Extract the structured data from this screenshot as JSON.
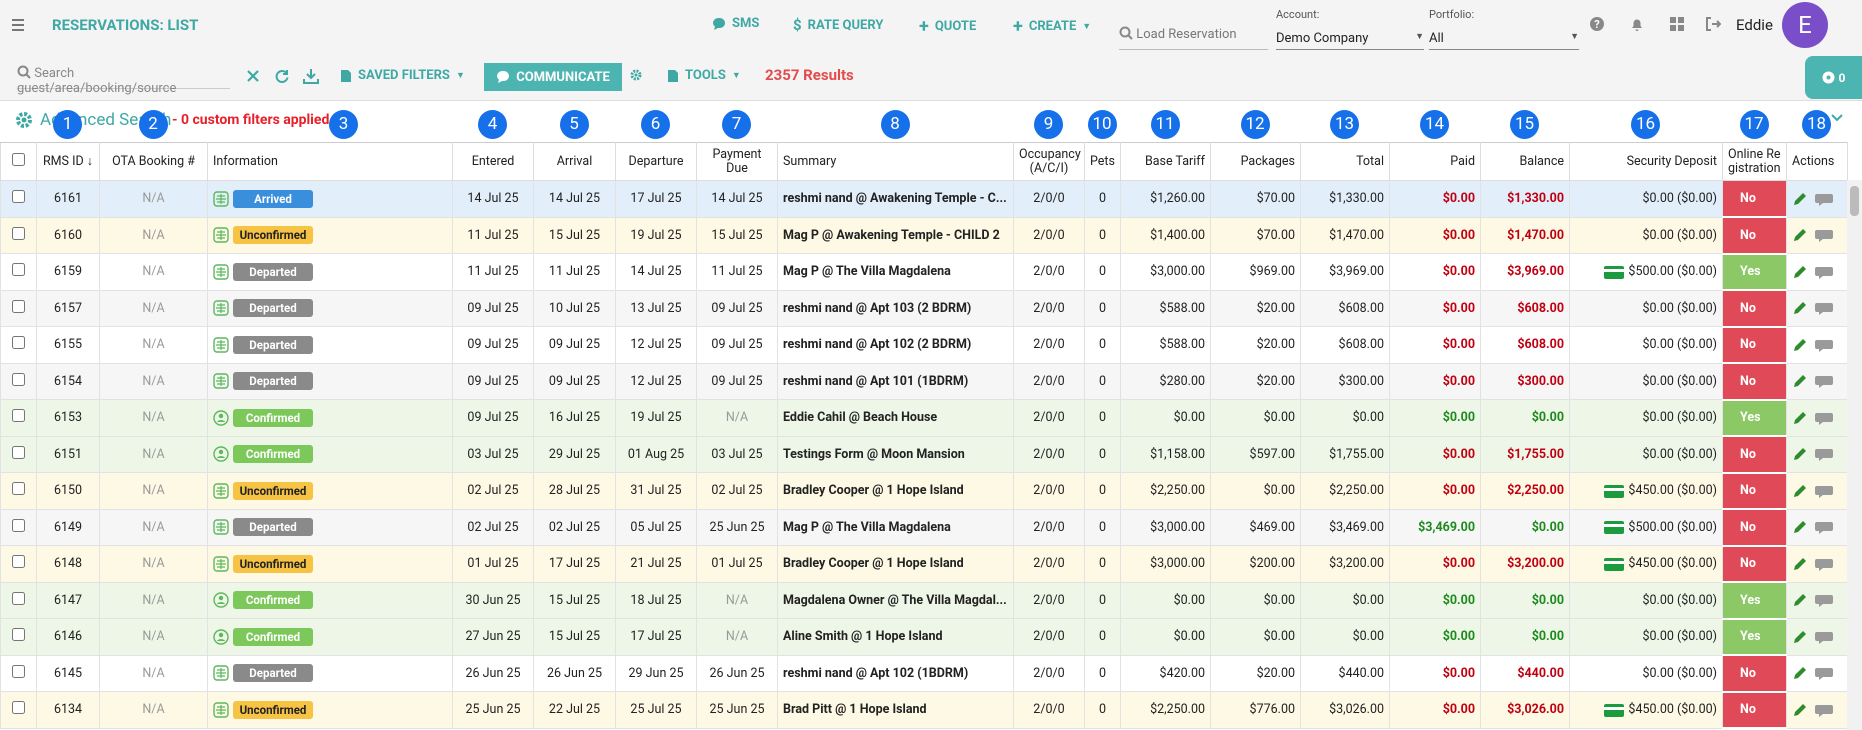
{
  "header": {
    "title": "RESERVATIONS: LIST",
    "nav": [
      "SMS",
      "RATE QUERY",
      "QUOTE",
      "CREATE"
    ],
    "load_placeholder": "Load Reservation",
    "account_label": "Account:",
    "account_value": "Demo Company",
    "portfolio_label": "Portfolio:",
    "portfolio_value": "All",
    "user": "Eddie",
    "avatar": "E"
  },
  "toolbar": {
    "search_placeholder": "Search guest/area/booking/source",
    "saved_filters": "SAVED FILTERS",
    "communicate": "COMMUNICATE",
    "tools": "TOOLS",
    "results": "2357 Results",
    "badge": 0
  },
  "filters": {
    "title": "Advanced Search",
    "status": "- 0 custom filters applied"
  },
  "annotations": [
    1,
    2,
    3,
    4,
    5,
    6,
    7,
    8,
    9,
    10,
    11,
    12,
    13,
    14,
    15,
    16,
    17,
    18
  ],
  "table": {
    "headers": [
      "RMS ID",
      "OTA Booking #",
      "Information",
      "Entered",
      "Arrival",
      "Departure",
      "Payment Due",
      "Summary",
      "Occupancy (A/C/I)",
      "Pets",
      "Base Tariff",
      "Packages",
      "Total",
      "Paid",
      "Balance",
      "Security Deposit",
      "Online Registration",
      "Actions"
    ],
    "rows": [
      {
        "id": 6161,
        "ota": "N/A",
        "icon": "globe",
        "status": "Arrived",
        "entered": "14 Jul 25",
        "arrival": "14 Jul 25",
        "departure": "17 Jul 25",
        "due": "14 Jul 25",
        "summary": "reshmi nand @ Awakening Temple - C...",
        "occupancy": "2/0/0",
        "pets": 0,
        "base": "$1,260.00",
        "packages": "$70.00",
        "total": "$1,330.00",
        "paid": "$0.00",
        "balance": "$1,330.00",
        "card": false,
        "deposit": "$0.00 ($0.00)",
        "online": "No",
        "bg": "#e2effa",
        "badge": "#3a8fdc",
        "ink": "#ffffff",
        "paid_color": "#c00010",
        "balance_color": "#c00010",
        "online_color": "#e04a58"
      },
      {
        "id": 6160,
        "ota": "N/A",
        "icon": "globe",
        "status": "Unconfirmed",
        "entered": "11 Jul 25",
        "arrival": "15 Jul 25",
        "departure": "19 Jul 25",
        "due": "15 Jul 25",
        "summary": "Mag P @ Awakening Temple - CHILD 2",
        "occupancy": "2/0/0",
        "pets": 0,
        "base": "$1,400.00",
        "packages": "$70.00",
        "total": "$1,470.00",
        "paid": "$0.00",
        "balance": "$1,470.00",
        "card": false,
        "deposit": "$0.00 ($0.00)",
        "online": "No",
        "bg": "#fdf9e4",
        "badge": "#f6c344",
        "ink": "#222222",
        "paid_color": "#c00010",
        "balance_color": "#c00010",
        "online_color": "#e04a58"
      },
      {
        "id": 6159,
        "ota": "N/A",
        "icon": "globe",
        "status": "Departed",
        "entered": "11 Jul 25",
        "arrival": "11 Jul 25",
        "departure": "14 Jul 25",
        "due": "11 Jul 25",
        "summary": "Mag P @ The Villa Magdalena",
        "occupancy": "2/0/0",
        "pets": 0,
        "base": "$3,000.00",
        "packages": "$969.00",
        "total": "$3,969.00",
        "paid": "$0.00",
        "balance": "$3,969.00",
        "card": true,
        "deposit": "$500.00 ($0.00)",
        "online": "Yes",
        "bg": "#ffffff",
        "badge": "#8a8a8a",
        "ink": "#ffffff",
        "paid_color": "#c00010",
        "balance_color": "#c00010",
        "online_color": "#8cc866"
      },
      {
        "id": 6157,
        "ota": "N/A",
        "icon": "globe",
        "status": "Departed",
        "entered": "09 Jul 25",
        "arrival": "10 Jul 25",
        "departure": "13 Jul 25",
        "due": "09 Jul 25",
        "summary": "reshmi nand @ Apt 103 (2 BDRM)",
        "occupancy": "2/0/0",
        "pets": 0,
        "base": "$588.00",
        "packages": "$20.00",
        "total": "$608.00",
        "paid": "$0.00",
        "balance": "$608.00",
        "card": false,
        "deposit": "$0.00 ($0.00)",
        "online": "No",
        "bg": "#f6f6f6",
        "badge": "#8a8a8a",
        "ink": "#ffffff",
        "paid_color": "#c00010",
        "balance_color": "#c00010",
        "online_color": "#e04a58"
      },
      {
        "id": 6155,
        "ota": "N/A",
        "icon": "globe",
        "status": "Departed",
        "entered": "09 Jul 25",
        "arrival": "09 Jul 25",
        "departure": "12 Jul 25",
        "due": "09 Jul 25",
        "summary": "reshmi nand @ Apt 102 (2 BDRM)",
        "occupancy": "2/0/0",
        "pets": 0,
        "base": "$588.00",
        "packages": "$20.00",
        "total": "$608.00",
        "paid": "$0.00",
        "balance": "$608.00",
        "card": false,
        "deposit": "$0.00 ($0.00)",
        "online": "No",
        "bg": "#ffffff",
        "badge": "#8a8a8a",
        "ink": "#ffffff",
        "paid_color": "#c00010",
        "balance_color": "#c00010",
        "online_color": "#e04a58"
      },
      {
        "id": 6154,
        "ota": "N/A",
        "icon": "globe",
        "status": "Departed",
        "entered": "09 Jul 25",
        "arrival": "09 Jul 25",
        "departure": "12 Jul 25",
        "due": "09 Jul 25",
        "summary": "reshmi nand @ Apt 101 (1BDRM)",
        "occupancy": "2/0/0",
        "pets": 0,
        "base": "$280.00",
        "packages": "$20.00",
        "total": "$300.00",
        "paid": "$0.00",
        "balance": "$300.00",
        "card": false,
        "deposit": "$0.00 ($0.00)",
        "online": "No",
        "bg": "#f6f6f6",
        "badge": "#8a8a8a",
        "ink": "#ffffff",
        "paid_color": "#c00010",
        "balance_color": "#c00010",
        "online_color": "#e04a58"
      },
      {
        "id": 6153,
        "ota": "N/A",
        "icon": "person",
        "status": "Confirmed",
        "entered": "09 Jul 25",
        "arrival": "16 Jul 25",
        "departure": "19 Jul 25",
        "due": "N/A",
        "summary": "Eddie Cahil @ Beach House",
        "occupancy": "2/0/0",
        "pets": 0,
        "base": "$0.00",
        "packages": "$0.00",
        "total": "$0.00",
        "paid": "$0.00",
        "balance": "$0.00",
        "card": false,
        "deposit": "$0.00 ($0.00)",
        "online": "Yes",
        "bg": "#eef6e8",
        "badge": "#7cc85a",
        "ink": "#ffffff",
        "paid_color": "#1c8a1c",
        "balance_color": "#1c8a1c",
        "online_color": "#8cc866"
      },
      {
        "id": 6151,
        "ota": "N/A",
        "icon": "person",
        "status": "Confirmed",
        "entered": "03 Jul 25",
        "arrival": "29 Jul 25",
        "departure": "01 Aug 25",
        "due": "03 Jul 25",
        "summary": "Testings Form @ Moon Mansion",
        "occupancy": "2/0/0",
        "pets": 0,
        "base": "$1,158.00",
        "packages": "$597.00",
        "total": "$1,755.00",
        "paid": "$0.00",
        "balance": "$1,755.00",
        "card": false,
        "deposit": "$0.00 ($0.00)",
        "online": "No",
        "bg": "#eef6e8",
        "badge": "#7cc85a",
        "ink": "#ffffff",
        "paid_color": "#c00010",
        "balance_color": "#c00010",
        "online_color": "#e04a58"
      },
      {
        "id": 6150,
        "ota": "N/A",
        "icon": "globe",
        "status": "Unconfirmed",
        "entered": "02 Jul 25",
        "arrival": "28 Jul 25",
        "departure": "31 Jul 25",
        "due": "02 Jul 25",
        "summary": "Bradley Cooper @ 1 Hope Island",
        "occupancy": "2/0/0",
        "pets": 0,
        "base": "$2,250.00",
        "packages": "$0.00",
        "total": "$2,250.00",
        "paid": "$0.00",
        "balance": "$2,250.00",
        "card": true,
        "deposit": "$450.00 ($0.00)",
        "online": "No",
        "bg": "#fdf9e4",
        "badge": "#f6c344",
        "ink": "#222222",
        "paid_color": "#c00010",
        "balance_color": "#c00010",
        "online_color": "#e04a58"
      },
      {
        "id": 6149,
        "ota": "N/A",
        "icon": "globe",
        "status": "Departed",
        "entered": "02 Jul 25",
        "arrival": "02 Jul 25",
        "departure": "05 Jul 25",
        "due": "25 Jun 25",
        "summary": "Mag P @ The Villa Magdalena",
        "occupancy": "2/0/0",
        "pets": 0,
        "base": "$3,000.00",
        "packages": "$469.00",
        "total": "$3,469.00",
        "paid": "$3,469.00",
        "balance": "$0.00",
        "card": true,
        "deposit": "$500.00 ($0.00)",
        "online": "No",
        "bg": "#f6f6f6",
        "badge": "#8a8a8a",
        "ink": "#ffffff",
        "paid_color": "#1c8a1c",
        "balance_color": "#1c8a1c",
        "online_color": "#e04a58"
      },
      {
        "id": 6148,
        "ota": "N/A",
        "icon": "globe",
        "status": "Unconfirmed",
        "entered": "01 Jul 25",
        "arrival": "17 Jul 25",
        "departure": "21 Jul 25",
        "due": "01 Jul 25",
        "summary": "Bradley Cooper @ 1 Hope Island",
        "occupancy": "2/0/0",
        "pets": 0,
        "base": "$3,000.00",
        "packages": "$200.00",
        "total": "$3,200.00",
        "paid": "$0.00",
        "balance": "$3,200.00",
        "card": true,
        "deposit": "$450.00 ($0.00)",
        "online": "No",
        "bg": "#fdf9e4",
        "badge": "#f6c344",
        "ink": "#222222",
        "paid_color": "#c00010",
        "balance_color": "#c00010",
        "online_color": "#e04a58"
      },
      {
        "id": 6147,
        "ota": "N/A",
        "icon": "person",
        "status": "Confirmed",
        "entered": "30 Jun 25",
        "arrival": "15 Jul 25",
        "departure": "18 Jul 25",
        "due": "N/A",
        "summary": "Magdalena Owner @ The Villa Magdal...",
        "occupancy": "2/0/0",
        "pets": 0,
        "base": "$0.00",
        "packages": "$0.00",
        "total": "$0.00",
        "paid": "$0.00",
        "balance": "$0.00",
        "card": false,
        "deposit": "$0.00 ($0.00)",
        "online": "Yes",
        "bg": "#eef6e8",
        "badge": "#7cc85a",
        "ink": "#ffffff",
        "paid_color": "#1c8a1c",
        "balance_color": "#1c8a1c",
        "online_color": "#8cc866"
      },
      {
        "id": 6146,
        "ota": "N/A",
        "icon": "person",
        "status": "Confirmed",
        "entered": "27 Jun 25",
        "arrival": "15 Jul 25",
        "departure": "17 Jul 25",
        "due": "N/A",
        "summary": "Aline Smith @ 1 Hope Island",
        "occupancy": "2/0/0",
        "pets": 0,
        "base": "$0.00",
        "packages": "$0.00",
        "total": "$0.00",
        "paid": "$0.00",
        "balance": "$0.00",
        "card": false,
        "deposit": "$0.00 ($0.00)",
        "online": "Yes",
        "bg": "#eef6e8",
        "badge": "#7cc85a",
        "ink": "#ffffff",
        "paid_color": "#1c8a1c",
        "balance_color": "#1c8a1c",
        "online_color": "#8cc866"
      },
      {
        "id": 6145,
        "ota": "N/A",
        "icon": "globe",
        "status": "Departed",
        "entered": "26 Jun 25",
        "arrival": "26 Jun 25",
        "departure": "29 Jun 25",
        "due": "26 Jun 25",
        "summary": "reshmi nand @ Apt 102 (1BDRM)",
        "occupancy": "2/0/0",
        "pets": 0,
        "base": "$420.00",
        "packages": "$20.00",
        "total": "$440.00",
        "paid": "$0.00",
        "balance": "$440.00",
        "card": false,
        "deposit": "$0.00 ($0.00)",
        "online": "No",
        "bg": "#ffffff",
        "badge": "#8a8a8a",
        "ink": "#ffffff",
        "paid_color": "#c00010",
        "balance_color": "#c00010",
        "online_color": "#e04a58"
      },
      {
        "id": 6134,
        "ota": "N/A",
        "icon": "globe",
        "status": "Unconfirmed",
        "entered": "25 Jun 25",
        "arrival": "22 Jul 25",
        "departure": "25 Jul 25",
        "due": "25 Jun 25",
        "summary": "Brad Pitt @ 1 Hope Island",
        "occupancy": "2/0/0",
        "pets": 0,
        "base": "$2,250.00",
        "packages": "$776.00",
        "total": "$3,026.00",
        "paid": "$0.00",
        "balance": "$3,026.00",
        "card": true,
        "deposit": "$450.00 ($0.00)",
        "online": "No",
        "bg": "#fdf9e4",
        "badge": "#f6c344",
        "ink": "#222222",
        "paid_color": "#c00010",
        "balance_color": "#c00010",
        "online_color": "#e04a58"
      }
    ]
  }
}
